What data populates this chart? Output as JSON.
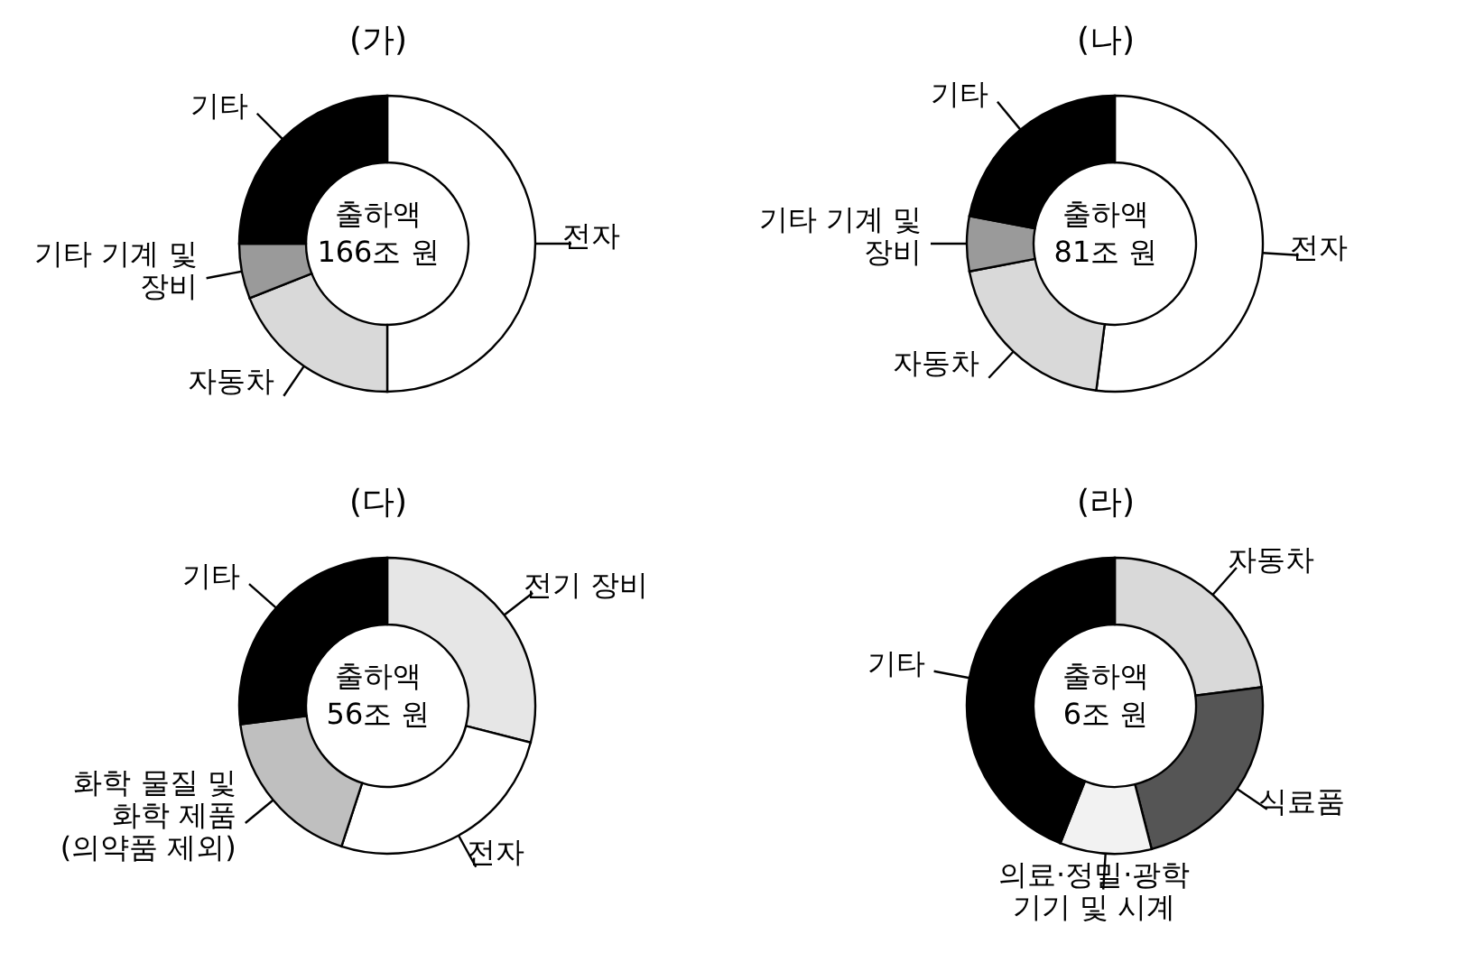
{
  "chart_data": [
    {
      "type": "donut",
      "title": "(가)",
      "categories": [
        "전자",
        "자동차",
        "기타 기계 및 장비",
        "기타"
      ],
      "values": [
        50,
        19,
        6,
        25
      ],
      "colors": [
        "#ffffff",
        "#d9d9d9",
        "#9a9a9a",
        "#000000"
      ],
      "annotations": [
        "출하액 166조 원"
      ],
      "legend": false
    },
    {
      "type": "donut",
      "title": "(나)",
      "categories": [
        "전자",
        "자동차",
        "기타 기계 및 장비",
        "기타"
      ],
      "values": [
        52,
        20,
        6,
        22
      ],
      "colors": [
        "#ffffff",
        "#d9d9d9",
        "#9a9a9a",
        "#000000"
      ],
      "annotations": [
        "출하액 81조 원"
      ],
      "legend": false
    },
    {
      "type": "donut",
      "title": "(다)",
      "categories": [
        "전기 장비",
        "전자",
        "화학 물질 및 화학 제품 (의약품 제외)",
        "기타"
      ],
      "values": [
        29,
        26,
        18,
        27
      ],
      "colors": [
        "#e6e6e6",
        "#ffffff",
        "#bfbfbf",
        "#000000"
      ],
      "annotations": [
        "출하액 56조 원"
      ],
      "legend": false
    },
    {
      "type": "donut",
      "title": "(라)",
      "categories": [
        "자동차",
        "식료품",
        "의료·정밀·광학 기기 및 시계",
        "기타"
      ],
      "values": [
        23,
        23,
        10,
        44
      ],
      "colors": [
        "#d9d9d9",
        "#555555",
        "#f2f2f2",
        "#000000"
      ],
      "annotations": [
        "출하액 6조 원"
      ],
      "legend": false
    }
  ]
}
